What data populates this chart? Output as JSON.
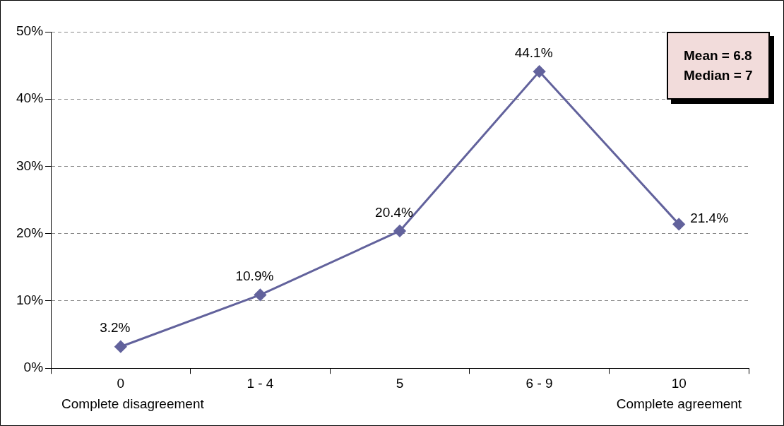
{
  "chart_data": {
    "type": "line",
    "categories": [
      "0",
      "1 - 4",
      "5",
      "6 - 9",
      "10"
    ],
    "series": [
      {
        "color": "#62629c",
        "values": [
          3.2,
          10.9,
          20.4,
          44.1,
          21.4
        ],
        "value_labels": [
          "3.2%",
          "10.9%",
          "20.4%",
          "44.1%",
          "21.4%"
        ]
      }
    ],
    "ylim": [
      0,
      50
    ],
    "yticks": [
      {
        "value": 0,
        "label": "0%"
      },
      {
        "value": 10,
        "label": "10%"
      },
      {
        "value": 20,
        "label": "20%"
      },
      {
        "value": 30,
        "label": "30%"
      },
      {
        "value": 40,
        "label": "40%"
      },
      {
        "value": 50,
        "label": "50%"
      }
    ],
    "grid": "y",
    "legend": false,
    "marker": "diamond",
    "line_style": "solid",
    "annotations": [
      "Complete disagreement",
      "Complete agreement",
      "Mean = 6.8",
      "Median = 7"
    ]
  }
}
